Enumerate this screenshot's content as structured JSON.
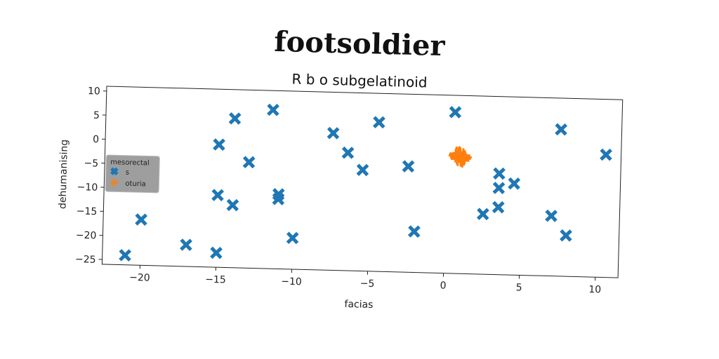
{
  "chart_data": {
    "type": "scatter",
    "title": "footsoldier",
    "subtitle": "R b o subgelatinoid",
    "xlabel": "facias",
    "ylabel": "dehumanising",
    "xlim": [
      -22.5,
      11.5
    ],
    "ylim": [
      -26,
      11
    ],
    "xticks": [
      -20,
      -15,
      -10,
      -5,
      0,
      5,
      10
    ],
    "yticks": [
      10,
      5,
      0,
      -5,
      -10,
      -15,
      -20,
      -25
    ],
    "legend": {
      "title": "mesorectal",
      "position": "center-left"
    },
    "series": [
      {
        "name": "s",
        "color": "#1f77b4",
        "marker": "X",
        "points": [
          [
            -21,
            -24
          ],
          [
            -20,
            -16.5
          ],
          [
            -17,
            -21.5
          ],
          [
            -15,
            -23
          ],
          [
            -15,
            -11
          ],
          [
            -14,
            -13
          ],
          [
            -15,
            -0.5
          ],
          [
            -14,
            5
          ],
          [
            -13,
            -4
          ],
          [
            -11.5,
            7
          ],
          [
            -11,
            -10.5
          ],
          [
            -11,
            -11.5
          ],
          [
            -10,
            -19.5
          ],
          [
            -7.5,
            2.5
          ],
          [
            -6.5,
            -1.5
          ],
          [
            -5.5,
            -5
          ],
          [
            -4.5,
            5
          ],
          [
            -2.5,
            -4
          ],
          [
            -2,
            -17.5
          ],
          [
            0.5,
            7.5
          ],
          [
            2.5,
            -13.5
          ],
          [
            3.5,
            -12
          ],
          [
            3.5,
            -5
          ],
          [
            3.5,
            -8
          ],
          [
            4.5,
            -7
          ],
          [
            7,
            -13.5
          ],
          [
            7.5,
            4.5
          ],
          [
            8,
            -17.5
          ],
          [
            10.5,
            -0.5
          ]
        ]
      },
      {
        "name": "oturia",
        "color": "#ff7f0e",
        "marker": "plus",
        "points": [
          [
            0.8,
            -1.2
          ],
          [
            0.9,
            -1.6
          ],
          [
            1.0,
            -2.0
          ],
          [
            0.7,
            -1.9
          ],
          [
            1.1,
            -1.4
          ],
          [
            0.6,
            -1.5
          ],
          [
            0.95,
            -2.3
          ],
          [
            1.2,
            -1.8
          ],
          [
            0.85,
            -1.0
          ],
          [
            1.05,
            -2.5
          ],
          [
            0.75,
            -2.2
          ],
          [
            0.65,
            -1.1
          ],
          [
            1.15,
            -2.1
          ],
          [
            0.9,
            -1.3
          ]
        ]
      }
    ]
  }
}
